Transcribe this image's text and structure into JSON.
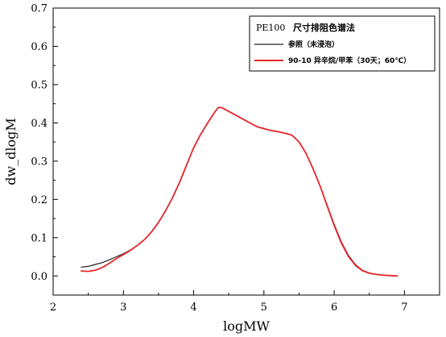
{
  "chart_data": {
    "type": "line",
    "xlabel": "logMW",
    "ylabel": "dw_dlogM",
    "xlim": [
      2,
      7
    ],
    "ylim": [
      0,
      0.7
    ],
    "y_axis_min_display": -0.05,
    "y_axis_max_display": 0.7,
    "x_axis_min_display": 2,
    "x_axis_max_display": 7.5,
    "xticks": [
      2,
      3,
      4,
      5,
      6,
      7
    ],
    "xtick_labels": [
      "2",
      "3",
      "4",
      "5",
      "6",
      "7"
    ],
    "yticks": [
      0.0,
      0.1,
      0.2,
      0.3,
      0.4,
      0.5,
      0.6,
      0.7
    ],
    "ytick_labels": [
      "0.0",
      "0.1",
      "0.2",
      "0.3",
      "0.4",
      "0.5",
      "0.6",
      "0.7"
    ],
    "grid": false,
    "legend": {
      "title_en": "PE100",
      "title_cn": "尺寸排阻色谱法",
      "placement": "top-right"
    },
    "series": [
      {
        "name": "参照（未浸泡）",
        "color": "#222222",
        "x": [
          2.4,
          2.5,
          2.6,
          2.7,
          2.8,
          2.9,
          3.0,
          3.1,
          3.2,
          3.3,
          3.4,
          3.5,
          3.6,
          3.7,
          3.8,
          3.9,
          4.0,
          4.1,
          4.2,
          4.3,
          4.35,
          4.4,
          4.5,
          4.6,
          4.7,
          4.8,
          4.9,
          5.0,
          5.1,
          5.2,
          5.3,
          5.4,
          5.5,
          5.6,
          5.7,
          5.8,
          5.9,
          6.0,
          6.1,
          6.2,
          6.3,
          6.4,
          6.5,
          6.6,
          6.7,
          6.8,
          6.9
        ],
        "y": [
          0.023,
          0.025,
          0.03,
          0.035,
          0.042,
          0.05,
          0.058,
          0.068,
          0.08,
          0.095,
          0.115,
          0.14,
          0.17,
          0.205,
          0.245,
          0.29,
          0.335,
          0.37,
          0.4,
          0.428,
          0.44,
          0.44,
          0.43,
          0.42,
          0.41,
          0.4,
          0.39,
          0.385,
          0.38,
          0.377,
          0.373,
          0.368,
          0.35,
          0.32,
          0.28,
          0.235,
          0.185,
          0.135,
          0.09,
          0.055,
          0.03,
          0.015,
          0.008,
          0.004,
          0.002,
          0.001,
          0.0
        ]
      },
      {
        "name": "90-10 异辛烷/甲苯（30天；60℃）",
        "color": "#e8262b",
        "x": [
          2.4,
          2.5,
          2.6,
          2.7,
          2.8,
          2.9,
          3.0,
          3.1,
          3.2,
          3.3,
          3.4,
          3.5,
          3.6,
          3.7,
          3.8,
          3.9,
          4.0,
          4.1,
          4.2,
          4.3,
          4.35,
          4.4,
          4.5,
          4.6,
          4.7,
          4.8,
          4.9,
          5.0,
          5.1,
          5.2,
          5.3,
          5.4,
          5.5,
          5.6,
          5.7,
          5.8,
          5.9,
          6.0,
          6.1,
          6.2,
          6.3,
          6.4,
          6.5,
          6.6,
          6.7,
          6.8,
          6.9
        ],
        "y": [
          0.013,
          0.012,
          0.015,
          0.022,
          0.033,
          0.045,
          0.056,
          0.067,
          0.08,
          0.095,
          0.115,
          0.14,
          0.17,
          0.205,
          0.245,
          0.29,
          0.335,
          0.37,
          0.4,
          0.428,
          0.44,
          0.44,
          0.43,
          0.42,
          0.41,
          0.4,
          0.39,
          0.385,
          0.38,
          0.377,
          0.373,
          0.368,
          0.35,
          0.32,
          0.28,
          0.235,
          0.183,
          0.132,
          0.087,
          0.052,
          0.028,
          0.014,
          0.007,
          0.004,
          0.002,
          0.001,
          0.0
        ]
      }
    ]
  }
}
